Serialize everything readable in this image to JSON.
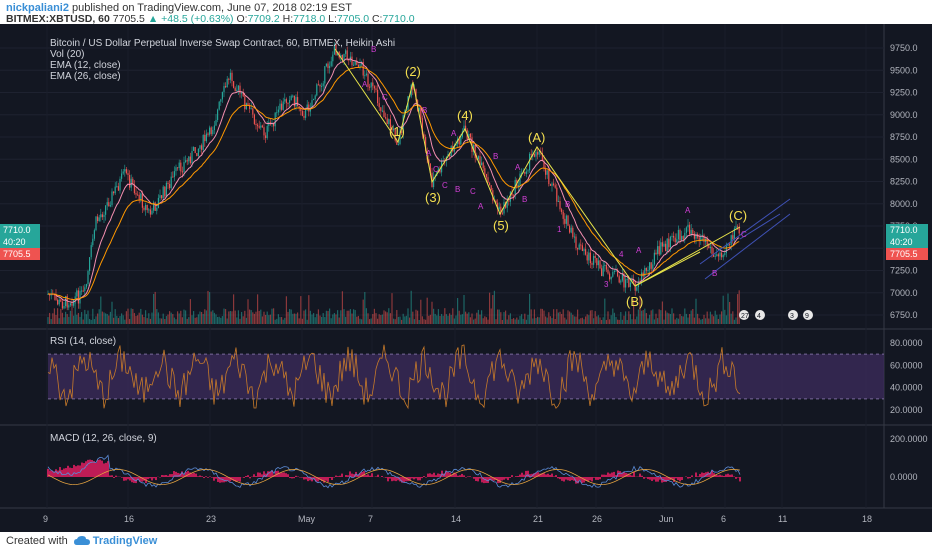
{
  "header": {
    "author": "nickpaliani2",
    "published": "published on TradingView.com, June 07, 2018 02:19 EST",
    "symbol": "BITMEX:XBTUSD, 60",
    "last": "7705.5",
    "change": "+48.5 (+0.63%)",
    "o_label": "O:",
    "o": "7709.2",
    "h_label": "H:",
    "h": "7718.0",
    "l_label": "L:",
    "l": "7705.0",
    "c_label": "C:",
    "c": "7710.0"
  },
  "legend": {
    "title": "Bitcoin / US Dollar Perpetual Inverse Swap Contract, 60, BITMEX, Heikin Ashi",
    "vol": "Vol (20)",
    "ema12": "EMA (12, close)",
    "ema26": "EMA (26, close)",
    "rsi": "RSI (14, close)",
    "macd": "MACD (12, 26, close, 9)"
  },
  "price_axis": {
    "ticks": [
      "9750.0",
      "9500.0",
      "9250.0",
      "9000.0",
      "8750.0",
      "8500.0",
      "8250.0",
      "8000.0",
      "7750.0",
      "7500.0",
      "7250.0",
      "7000.0",
      "6750.0"
    ],
    "badge_price": "7710.0",
    "badge_time": "40:20",
    "badge_bid": "7705.5"
  },
  "rsi_axis": {
    "ticks": [
      "80.0000",
      "60.0000",
      "40.0000",
      "20.0000"
    ]
  },
  "macd_axis": {
    "ticks": [
      "200.0000",
      "0.0000"
    ]
  },
  "time_axis": {
    "labels": [
      "9",
      "16",
      "23",
      "May",
      "7",
      "14",
      "21",
      "26",
      "Jun",
      "6",
      "11",
      "18"
    ]
  },
  "waves": {
    "w1": "(1)",
    "w2": "(2)",
    "w3": "(3)",
    "w4": "(4)",
    "w5": "(5)",
    "wA": "(A)",
    "wB": "(B)",
    "wC": "(C)",
    "a": "A",
    "b": "B",
    "c": "C",
    "n1": "1",
    "n3": "3",
    "n4": "4"
  },
  "events": {
    "e1": "27",
    "e2": "4",
    "e3": "3",
    "e4": "9"
  },
  "footer": {
    "created_with": "Created with",
    "brand": "TradingView"
  },
  "colors": {
    "bg": "#131722",
    "up": "#26a69a",
    "down": "#ef5350",
    "ema12": "#f48fb1",
    "ema26": "#ff9800",
    "wave_line": "#e8e44a",
    "wave_label": "#f5e050",
    "sub_label": "#d23fd6",
    "rsi_line": "#c77a2a",
    "rsi_band": "#3b2a5a",
    "macd_hist": "#e91e63",
    "macd_line": "#5b8bd6",
    "signal_line": "#e0a040"
  }
}
